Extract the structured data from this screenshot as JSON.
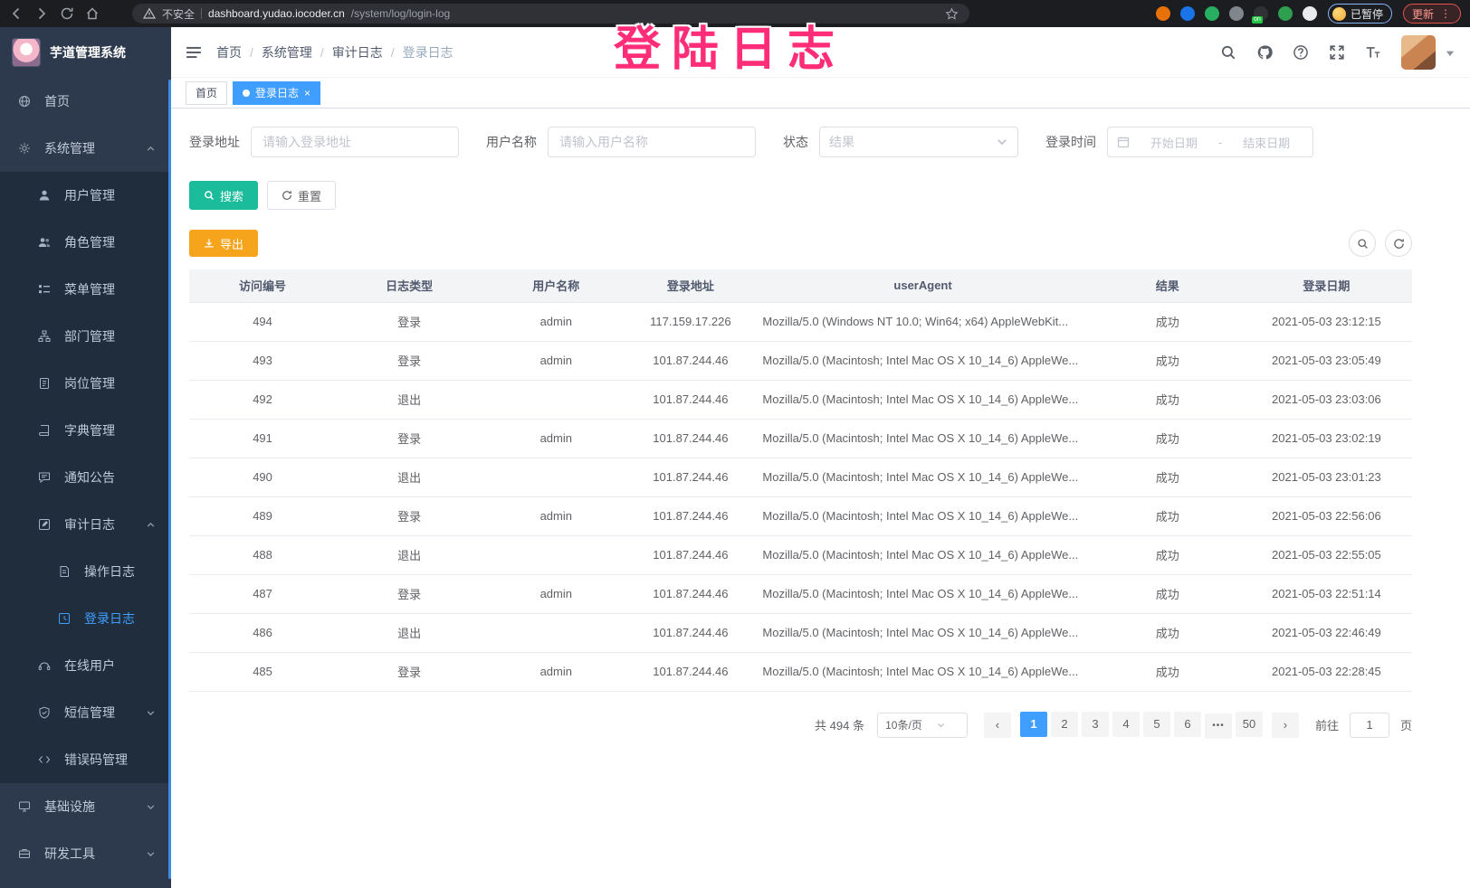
{
  "overlay": {
    "text": "登陆日志"
  },
  "browser": {
    "security_label": "不安全",
    "url_domain": "dashboard.yudao.iocoder.cn",
    "url_path": "/system/log/login-log",
    "paused_label": "已暂停",
    "update_label": "更新",
    "extensions": [
      {
        "name": "extension-firefox-icon",
        "color": "#e8710a"
      },
      {
        "name": "extension-shield-icon",
        "color": "#1a73e8"
      },
      {
        "name": "extension-green-circle-icon",
        "color": "#27ae60"
      },
      {
        "name": "extension-grid-icon",
        "color": "#80868b"
      },
      {
        "name": "extension-onetab-icon",
        "color": "#2f3133",
        "badge": "on",
        "badge_color": "#23c343"
      },
      {
        "name": "extension-leaf-icon",
        "color": "#2e9e4f"
      },
      {
        "name": "extension-paw-icon",
        "color": "#e8eaed"
      }
    ]
  },
  "sidebar": {
    "title": "芋道管理系统",
    "items": [
      {
        "id": "home",
        "label": "首页",
        "icon": "dashboard-icon",
        "level": 1
      },
      {
        "id": "system-management",
        "label": "系统管理",
        "icon": "gear-icon",
        "level": 1,
        "arrow": "up"
      },
      {
        "id": "user-management",
        "label": "用户管理",
        "icon": "user-icon",
        "level": 2,
        "sub": true
      },
      {
        "id": "role-management",
        "label": "角色管理",
        "icon": "users-icon",
        "level": 2,
        "sub": true
      },
      {
        "id": "menu-management",
        "label": "菜单管理",
        "icon": "menu-list-icon",
        "level": 2,
        "sub": true
      },
      {
        "id": "dept-management",
        "label": "部门管理",
        "icon": "org-tree-icon",
        "level": 2,
        "sub": true
      },
      {
        "id": "post-management",
        "label": "岗位管理",
        "icon": "badge-icon",
        "level": 2,
        "sub": true
      },
      {
        "id": "dict-management",
        "label": "字典管理",
        "icon": "book-icon",
        "level": 2,
        "sub": true
      },
      {
        "id": "notice-announcement",
        "label": "通知公告",
        "icon": "message-icon",
        "level": 2,
        "sub": true
      },
      {
        "id": "audit-log",
        "label": "审计日志",
        "icon": "edit-square-icon",
        "level": 2,
        "sub": true,
        "arrow": "up"
      },
      {
        "id": "operate-log",
        "label": "操作日志",
        "icon": "document-icon",
        "level": 3,
        "sub": true
      },
      {
        "id": "login-log",
        "label": "登录日志",
        "icon": "clock-square-icon",
        "level": 3,
        "sub": true,
        "active": true
      },
      {
        "id": "online-user",
        "label": "在线用户",
        "icon": "headset-icon",
        "level": 2,
        "sub": true
      },
      {
        "id": "sms-management",
        "label": "短信管理",
        "icon": "shield-icon",
        "level": 2,
        "sub": true,
        "arrow": "down"
      },
      {
        "id": "error-code-management",
        "label": "错误码管理",
        "icon": "code-icon",
        "level": 2,
        "sub": true
      },
      {
        "id": "infrastructure",
        "label": "基础设施",
        "icon": "monitor-icon",
        "level": 1,
        "arrow": "down"
      },
      {
        "id": "dev-tools",
        "label": "研发工具",
        "icon": "toolbox-icon",
        "level": 1,
        "arrow": "down"
      }
    ]
  },
  "header": {
    "breadcrumb": [
      "首页",
      "系统管理",
      "审计日志",
      "登录日志"
    ]
  },
  "tags": [
    {
      "label": "首页",
      "active": false,
      "closable": false
    },
    {
      "label": "登录日志",
      "active": true,
      "closable": true
    }
  ],
  "filters": {
    "address_label": "登录地址",
    "address_placeholder": "请输入登录地址",
    "username_label": "用户名称",
    "username_placeholder": "请输入用户名称",
    "status_label": "状态",
    "status_placeholder": "结果",
    "time_label": "登录时间",
    "date_start_placeholder": "开始日期",
    "date_separator": "-",
    "date_end_placeholder": "结束日期",
    "search_label": "搜索",
    "reset_label": "重置"
  },
  "toolbar": {
    "export_label": "导出"
  },
  "table": {
    "columns": [
      {
        "key": "id",
        "label": "访问编号"
      },
      {
        "key": "type",
        "label": "日志类型"
      },
      {
        "key": "user",
        "label": "用户名称"
      },
      {
        "key": "ip",
        "label": "登录地址"
      },
      {
        "key": "ua",
        "label": "userAgent"
      },
      {
        "key": "result",
        "label": "结果"
      },
      {
        "key": "date",
        "label": "登录日期"
      }
    ],
    "rows": [
      {
        "id": "494",
        "type": "登录",
        "user": "admin",
        "ip": "117.159.17.226",
        "ua": "Mozilla/5.0 (Windows NT 10.0; Win64; x64) AppleWebKit...",
        "result": "成功",
        "date": "2021-05-03 23:12:15"
      },
      {
        "id": "493",
        "type": "登录",
        "user": "admin",
        "ip": "101.87.244.46",
        "ua": "Mozilla/5.0 (Macintosh; Intel Mac OS X 10_14_6) AppleWe...",
        "result": "成功",
        "date": "2021-05-03 23:05:49"
      },
      {
        "id": "492",
        "type": "退出",
        "user": "",
        "ip": "101.87.244.46",
        "ua": "Mozilla/5.0 (Macintosh; Intel Mac OS X 10_14_6) AppleWe...",
        "result": "成功",
        "date": "2021-05-03 23:03:06"
      },
      {
        "id": "491",
        "type": "登录",
        "user": "admin",
        "ip": "101.87.244.46",
        "ua": "Mozilla/5.0 (Macintosh; Intel Mac OS X 10_14_6) AppleWe...",
        "result": "成功",
        "date": "2021-05-03 23:02:19"
      },
      {
        "id": "490",
        "type": "退出",
        "user": "",
        "ip": "101.87.244.46",
        "ua": "Mozilla/5.0 (Macintosh; Intel Mac OS X 10_14_6) AppleWe...",
        "result": "成功",
        "date": "2021-05-03 23:01:23"
      },
      {
        "id": "489",
        "type": "登录",
        "user": "admin",
        "ip": "101.87.244.46",
        "ua": "Mozilla/5.0 (Macintosh; Intel Mac OS X 10_14_6) AppleWe...",
        "result": "成功",
        "date": "2021-05-03 22:56:06"
      },
      {
        "id": "488",
        "type": "退出",
        "user": "",
        "ip": "101.87.244.46",
        "ua": "Mozilla/5.0 (Macintosh; Intel Mac OS X 10_14_6) AppleWe...",
        "result": "成功",
        "date": "2021-05-03 22:55:05"
      },
      {
        "id": "487",
        "type": "登录",
        "user": "admin",
        "ip": "101.87.244.46",
        "ua": "Mozilla/5.0 (Macintosh; Intel Mac OS X 10_14_6) AppleWe...",
        "result": "成功",
        "date": "2021-05-03 22:51:14"
      },
      {
        "id": "486",
        "type": "退出",
        "user": "",
        "ip": "101.87.244.46",
        "ua": "Mozilla/5.0 (Macintosh; Intel Mac OS X 10_14_6) AppleWe...",
        "result": "成功",
        "date": "2021-05-03 22:46:49"
      },
      {
        "id": "485",
        "type": "登录",
        "user": "admin",
        "ip": "101.87.244.46",
        "ua": "Mozilla/5.0 (Macintosh; Intel Mac OS X 10_14_6) AppleWe...",
        "result": "成功",
        "date": "2021-05-03 22:28:45"
      }
    ]
  },
  "pagination": {
    "total": "共 494 条",
    "page_size": "10条/页",
    "pages": [
      "1",
      "2",
      "3",
      "4",
      "5",
      "6",
      "•••",
      "50"
    ],
    "active_page": "1",
    "goto_label": "前往",
    "goto_value": "1",
    "page_suffix": "页"
  },
  "colors": {
    "accent": "#409eff",
    "search_button": "#1abc9c",
    "export_button": "#f6a41c",
    "overlay_pink": "#ff2d78",
    "sidebar_bg": "#2d3a4d",
    "submenu_bg": "#1f2d3d"
  }
}
